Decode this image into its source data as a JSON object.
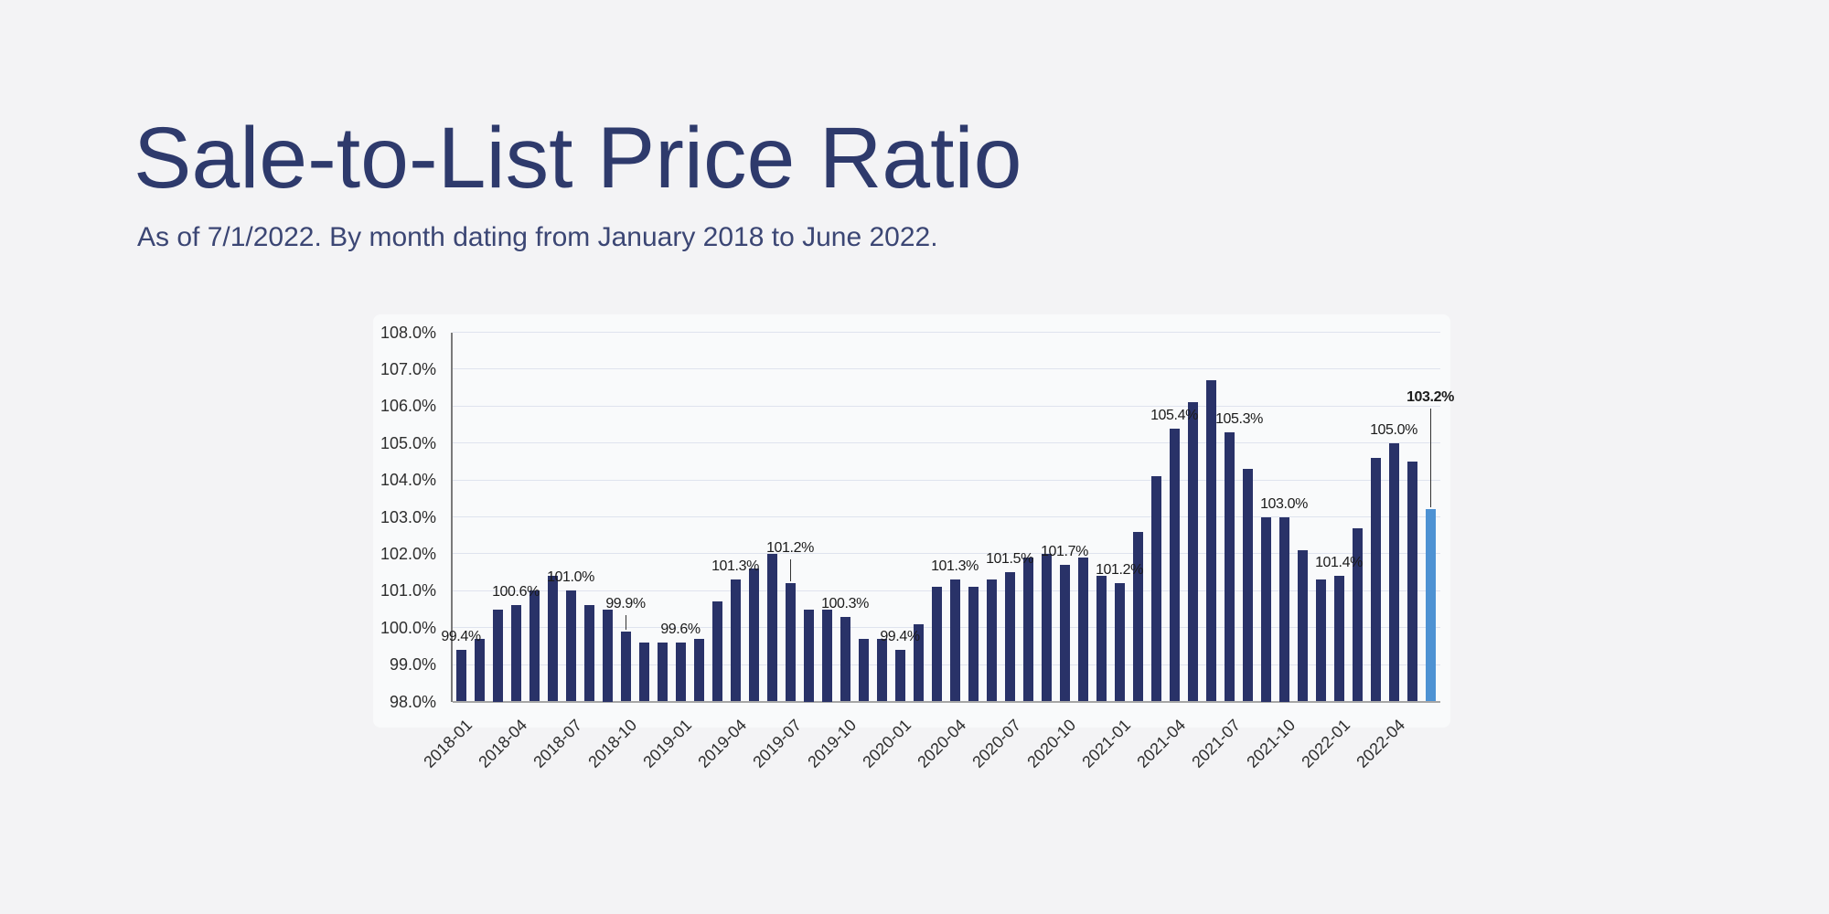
{
  "header": {
    "title": "Sale-to-List Price Ratio",
    "subtitle": "As of 7/1/2022. By month dating from January 2018 to June 2022."
  },
  "chart_data": {
    "type": "bar",
    "title": "Sale-to-List Price Ratio",
    "xlabel": "",
    "ylabel": "",
    "ylim": [
      98,
      108
    ],
    "grid": true,
    "legend": "none",
    "y_tick_labels": [
      "98.0%",
      "99.0%",
      "100.0%",
      "101.0%",
      "102.0%",
      "103.0%",
      "104.0%",
      "105.0%",
      "106.0%",
      "107.0%",
      "108.0%"
    ],
    "x_tick_labels": [
      "2018-01",
      "2018-04",
      "2018-07",
      "2018-10",
      "2019-01",
      "2019-04",
      "2019-07",
      "2019-10",
      "2020-01",
      "2020-04",
      "2020-07",
      "2020-10",
      "2021-01",
      "2021-04",
      "2021-07",
      "2021-10",
      "2022-01",
      "2022-04"
    ],
    "categories": [
      "2018-01",
      "2018-02",
      "2018-03",
      "2018-04",
      "2018-05",
      "2018-06",
      "2018-07",
      "2018-08",
      "2018-09",
      "2018-10",
      "2018-11",
      "2018-12",
      "2019-01",
      "2019-02",
      "2019-03",
      "2019-04",
      "2019-05",
      "2019-06",
      "2019-07",
      "2019-08",
      "2019-09",
      "2019-10",
      "2019-11",
      "2019-12",
      "2020-01",
      "2020-02",
      "2020-03",
      "2020-04",
      "2020-05",
      "2020-06",
      "2020-07",
      "2020-08",
      "2020-09",
      "2020-10",
      "2020-11",
      "2020-12",
      "2021-01",
      "2021-02",
      "2021-03",
      "2021-04",
      "2021-05",
      "2021-06",
      "2021-07",
      "2021-08",
      "2021-09",
      "2021-10",
      "2021-11",
      "2021-12",
      "2022-01",
      "2022-02",
      "2022-03",
      "2022-04",
      "2022-05",
      "2022-06"
    ],
    "values": [
      99.4,
      99.7,
      100.5,
      100.6,
      101.0,
      101.4,
      101.0,
      100.6,
      100.5,
      99.9,
      99.6,
      99.6,
      99.6,
      99.7,
      100.7,
      101.3,
      101.6,
      102.0,
      101.2,
      100.5,
      100.5,
      100.3,
      99.7,
      99.7,
      99.4,
      100.1,
      101.1,
      101.3,
      101.1,
      101.3,
      101.5,
      101.9,
      102.0,
      101.7,
      101.9,
      101.4,
      101.2,
      102.6,
      104.1,
      105.4,
      106.1,
      106.7,
      105.3,
      104.3,
      103.0,
      103.0,
      102.1,
      101.3,
      101.4,
      102.7,
      104.6,
      105.0,
      104.5,
      103.2
    ],
    "data_labels": [
      {
        "month": "2018-01",
        "text": "99.4%"
      },
      {
        "month": "2018-04",
        "text": "100.6%"
      },
      {
        "month": "2018-07",
        "text": "101.0%"
      },
      {
        "month": "2018-10",
        "text": "99.9%",
        "callout": 16
      },
      {
        "month": "2019-01",
        "text": "99.6%"
      },
      {
        "month": "2019-04",
        "text": "101.3%"
      },
      {
        "month": "2019-07",
        "text": "101.2%",
        "callout": 24
      },
      {
        "month": "2019-10",
        "text": "100.3%"
      },
      {
        "month": "2020-01",
        "text": "99.4%"
      },
      {
        "month": "2020-04",
        "text": "101.3%"
      },
      {
        "month": "2020-07",
        "text": "101.5%"
      },
      {
        "month": "2020-10",
        "text": "101.7%"
      },
      {
        "month": "2021-01",
        "text": "101.2%"
      },
      {
        "month": "2021-04",
        "text": "105.4%"
      },
      {
        "month": "2021-07",
        "text": "105.3%",
        "dx": 11
      },
      {
        "month": "2021-10",
        "text": "103.0%"
      },
      {
        "month": "2022-01",
        "text": "101.4%"
      },
      {
        "month": "2022-04",
        "text": "105.0%"
      },
      {
        "month": "2022-06",
        "text": "103.2%",
        "bold": true,
        "callout": 108
      }
    ],
    "highlight_month": "2022-06",
    "colors": {
      "bar": "#293268",
      "highlight_bar": "#4d92d3",
      "grid": "#dfe3ee",
      "x_axis": "#a6a6a6",
      "y_axis": "#7a7a7a",
      "label_text": "#1b1b1b",
      "tick_text": "#2e2e2e",
      "callout_line": "#333333",
      "title": "#2e3a6c",
      "subtitle": "#3b4674",
      "background": "#f3f3f5",
      "card": "#f9fafb"
    }
  }
}
